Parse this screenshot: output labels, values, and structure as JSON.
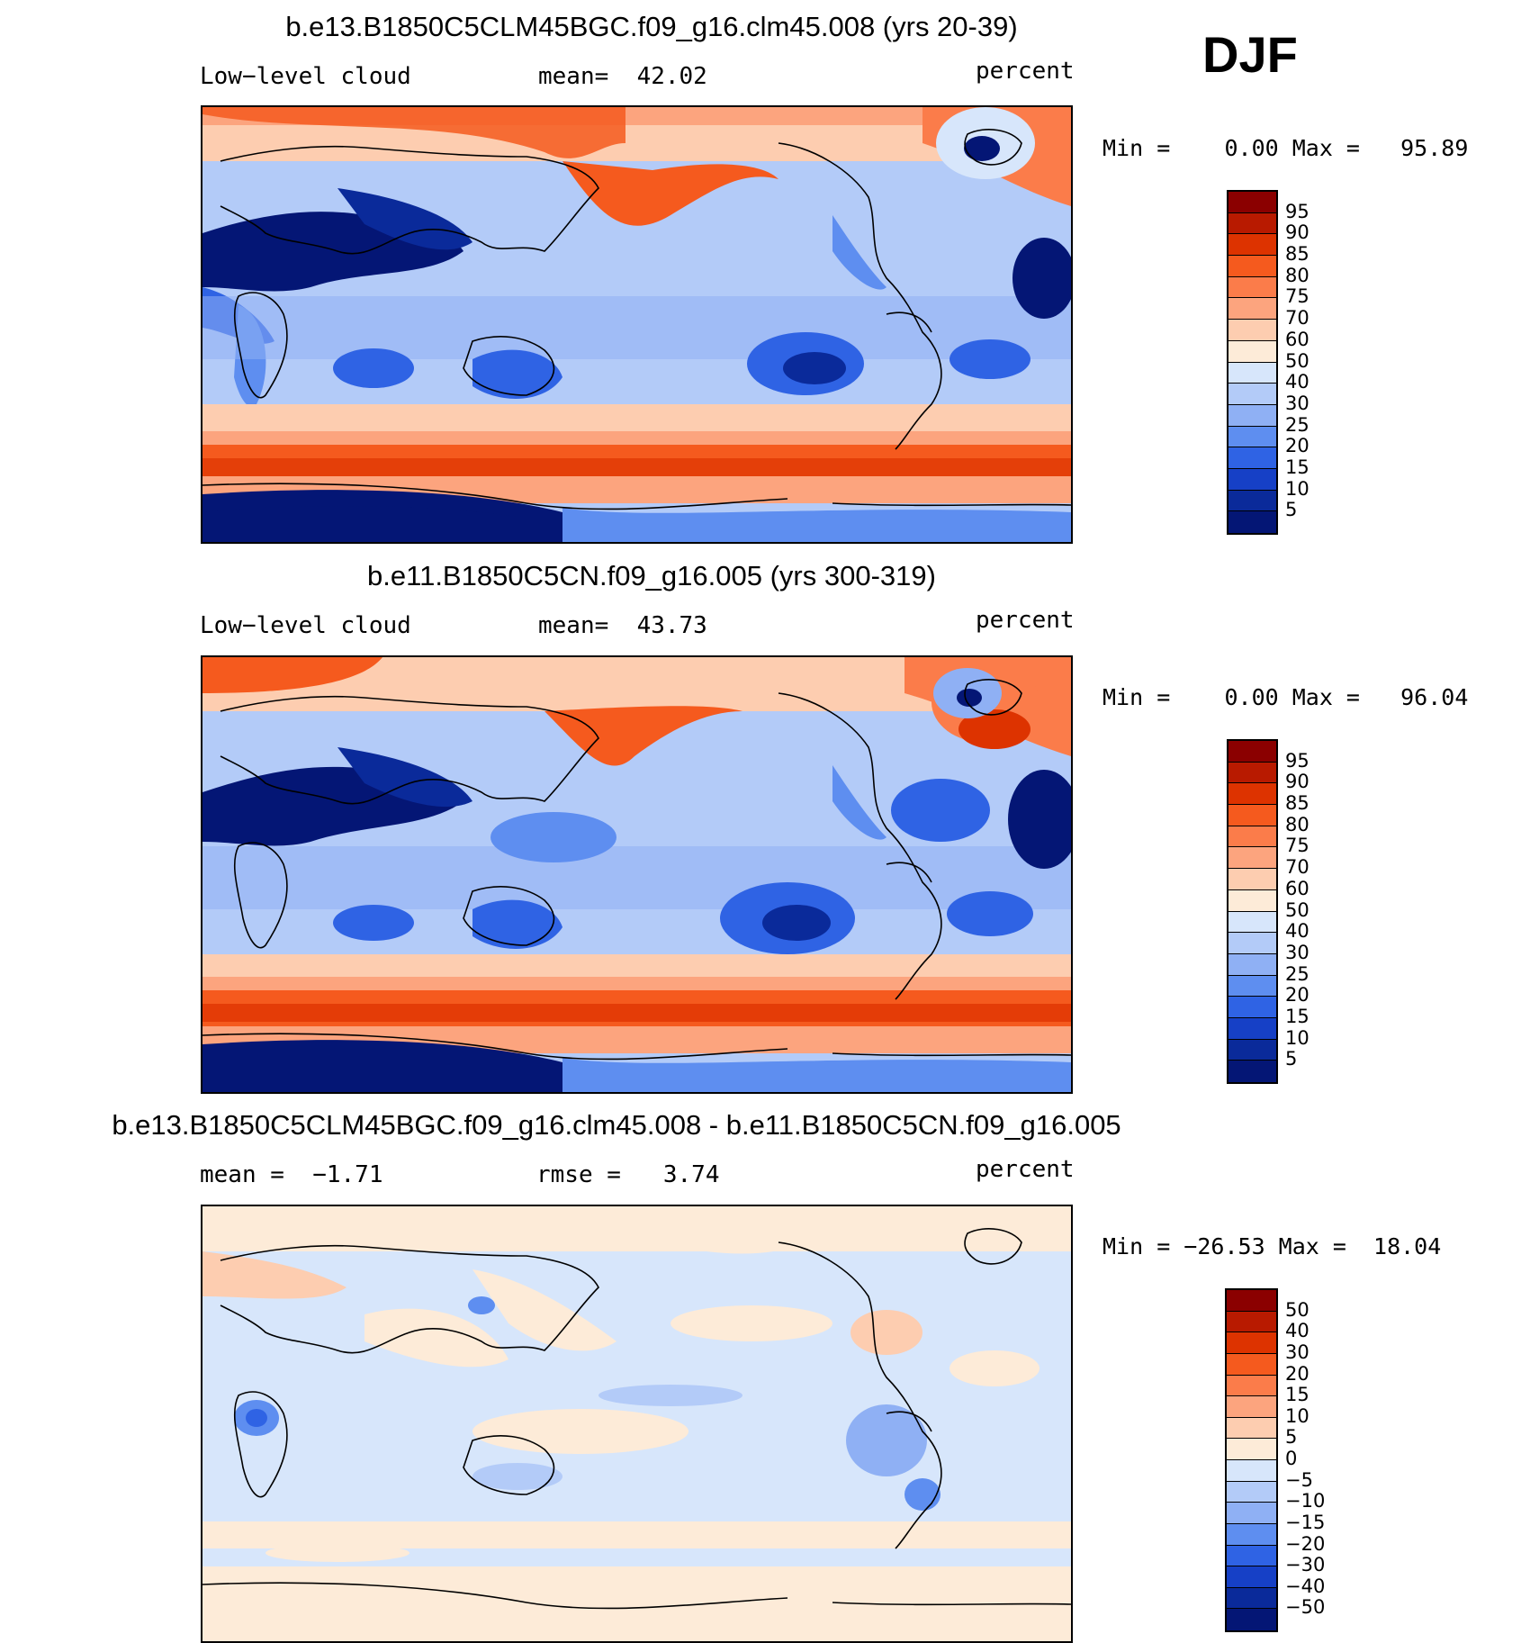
{
  "season": "DJF",
  "panels": [
    {
      "title": "b.e13.B1850C5CLM45BGC.f09_g16.clm45.008 (yrs 20-39)",
      "left_label": "Low−level cloud",
      "center_label": "mean=  42.02",
      "units": "percent",
      "minmax": "Min =    0.00 Max =   95.89",
      "colorbar": {
        "levels": [
          "95",
          "90",
          "85",
          "80",
          "75",
          "70",
          "60",
          "50",
          "40",
          "30",
          "25",
          "20",
          "15",
          "10",
          "5"
        ],
        "colors": [
          "#8b0000",
          "#b81a00",
          "#dd3300",
          "#f55a1e",
          "#fb7c4a",
          "#fca47e",
          "#fdcdb0",
          "#fdebd8",
          "#d7e6fb",
          "#b3cbf8",
          "#8fb0f4",
          "#5e8ef0",
          "#2f63e4",
          "#1640c6",
          "#0a2a9a",
          "#041675"
        ]
      }
    },
    {
      "title": "b.e11.B1850C5CN.f09_g16.005 (yrs 300-319)",
      "left_label": "Low−level cloud",
      "center_label": "mean=  43.73",
      "units": "percent",
      "minmax": "Min =    0.00 Max =   96.04",
      "colorbar": {
        "levels": [
          "95",
          "90",
          "85",
          "80",
          "75",
          "70",
          "60",
          "50",
          "40",
          "30",
          "25",
          "20",
          "15",
          "10",
          "5"
        ],
        "colors": [
          "#8b0000",
          "#b81a00",
          "#dd3300",
          "#f55a1e",
          "#fb7c4a",
          "#fca47e",
          "#fdcdb0",
          "#fdebd8",
          "#d7e6fb",
          "#b3cbf8",
          "#8fb0f4",
          "#5e8ef0",
          "#2f63e4",
          "#1640c6",
          "#0a2a9a",
          "#041675"
        ]
      }
    },
    {
      "title": "b.e13.B1850C5CLM45BGC.f09_g16.clm45.008 - b.e11.B1850C5CN.f09_g16.005",
      "left_label": "mean =  −1.71",
      "center_label": "rmse =   3.74",
      "units": "percent",
      "minmax": "Min = −26.53 Max =  18.04",
      "colorbar": {
        "levels": [
          "50",
          "40",
          "30",
          "20",
          "15",
          "10",
          "5",
          "0",
          "−5",
          "−10",
          "−15",
          "−20",
          "−30",
          "−40",
          "−50"
        ],
        "colors": [
          "#8b0000",
          "#b81a00",
          "#dd3300",
          "#f55a1e",
          "#fb7c4a",
          "#fca47e",
          "#fdcdb0",
          "#fdebd8",
          "#d7e6fb",
          "#b3cbf8",
          "#8fb0f4",
          "#5e8ef0",
          "#2f63e4",
          "#1640c6",
          "#0a2a9a",
          "#041675"
        ]
      }
    }
  ]
}
